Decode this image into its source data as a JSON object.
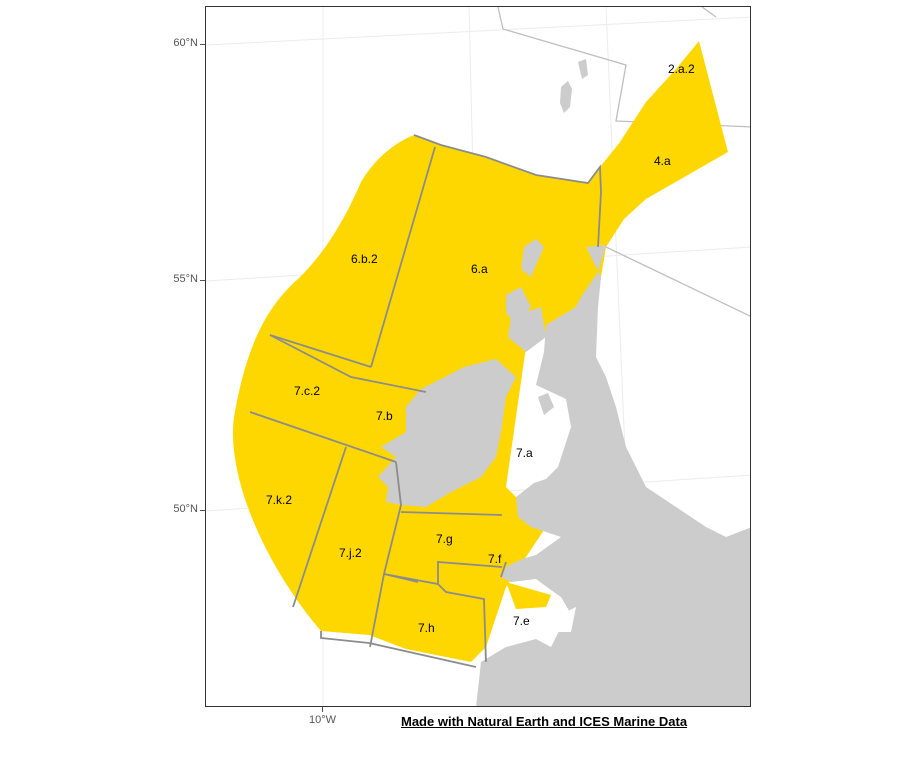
{
  "map": {
    "area_labels": [
      "2.a.2",
      "4.a",
      "6.b.2",
      "6.a",
      "7.c.2",
      "7.b",
      "7.a",
      "7.k.2",
      "7.g",
      "7.j.2",
      "7.f",
      "7.e",
      "7.h"
    ],
    "y_axis_labels": [
      "60°N",
      "55°N",
      "50°N"
    ],
    "x_axis_labels": [
      "10°W"
    ],
    "credit": "Made with Natural Earth and ICES Marine Data",
    "colors": {
      "area_fill": "#FFD700",
      "area_border": "#8c8c8c",
      "land": "#cccccc",
      "background": "#ffffff",
      "graticule": "#ececec"
    }
  }
}
